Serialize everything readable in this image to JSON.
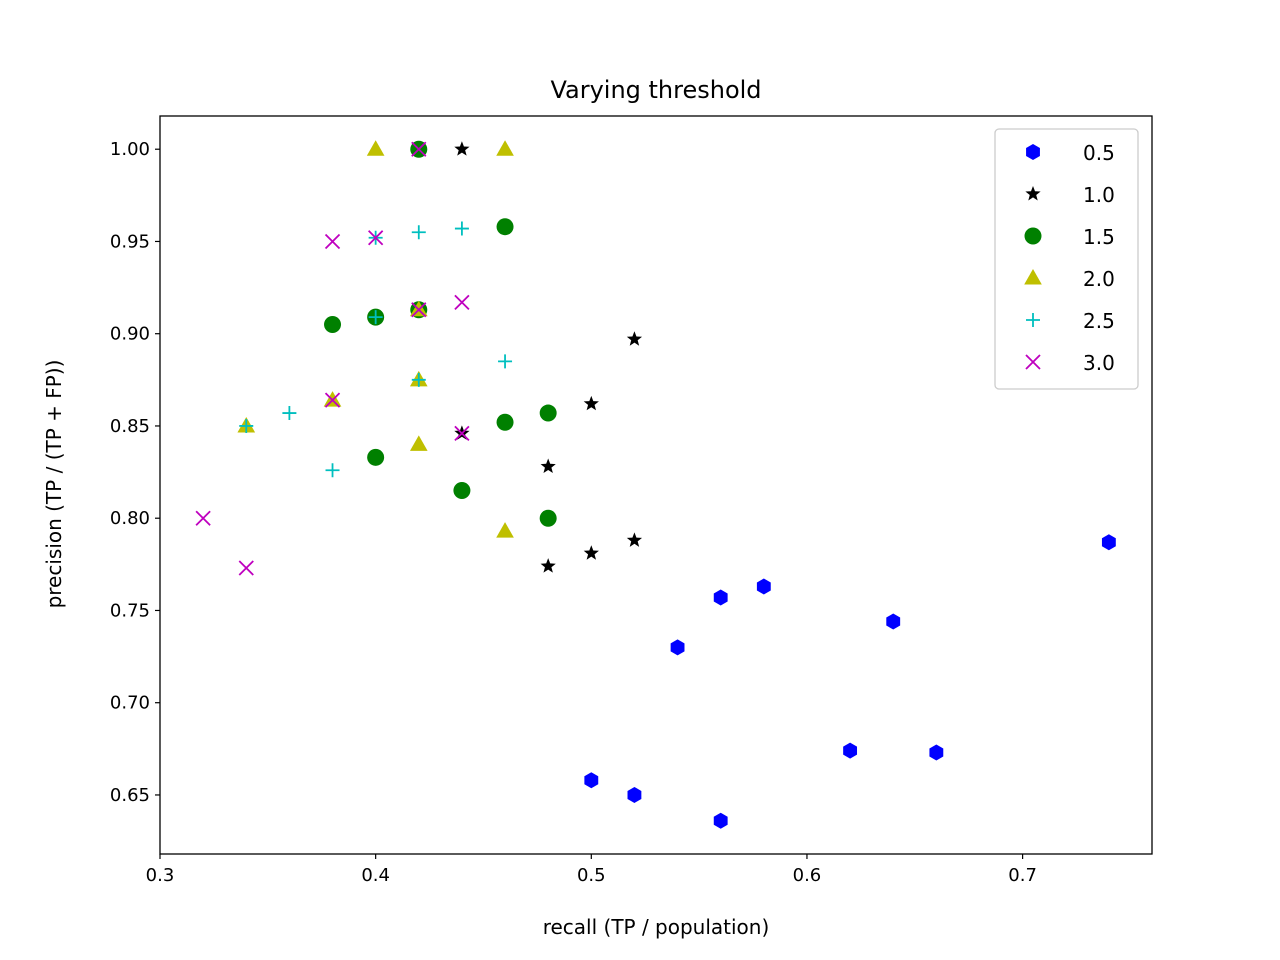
{
  "chart_data": {
    "type": "scatter",
    "title": "Varying threshold",
    "xlabel": "recall (TP / population)",
    "ylabel": "precision (TP / (TP + FP))",
    "xlim": [
      0.3,
      0.76
    ],
    "ylim": [
      0.618,
      1.018
    ],
    "xticks": [
      0.3,
      0.4,
      0.5,
      0.6,
      0.7
    ],
    "yticks": [
      0.65,
      0.7,
      0.75,
      0.8,
      0.85,
      0.9,
      0.95,
      1.0
    ],
    "xtick_labels": [
      "0.3",
      "0.4",
      "0.5",
      "0.6",
      "0.7"
    ],
    "ytick_labels": [
      "0.65",
      "0.70",
      "0.75",
      "0.80",
      "0.85",
      "0.90",
      "0.95",
      "1.00"
    ],
    "grid": false,
    "legend_position": "top-right",
    "series": [
      {
        "name": "0.5",
        "marker": "hexagon",
        "color": "#0000ff",
        "points": [
          [
            0.5,
            0.658
          ],
          [
            0.52,
            0.65
          ],
          [
            0.54,
            0.73
          ],
          [
            0.56,
            0.757
          ],
          [
            0.56,
            0.636
          ],
          [
            0.58,
            0.763
          ],
          [
            0.62,
            0.674
          ],
          [
            0.64,
            0.744
          ],
          [
            0.66,
            0.673
          ],
          [
            0.74,
            0.787
          ]
        ]
      },
      {
        "name": "1.0",
        "marker": "star",
        "color": "#000000",
        "points": [
          [
            0.42,
            1.0
          ],
          [
            0.44,
            1.0
          ],
          [
            0.44,
            0.846
          ],
          [
            0.48,
            0.828
          ],
          [
            0.48,
            0.774
          ],
          [
            0.5,
            0.862
          ],
          [
            0.5,
            0.781
          ],
          [
            0.52,
            0.897
          ],
          [
            0.52,
            0.788
          ]
        ]
      },
      {
        "name": "1.5",
        "marker": "circle",
        "color": "#008000",
        "points": [
          [
            0.38,
            0.905
          ],
          [
            0.4,
            0.909
          ],
          [
            0.4,
            0.833
          ],
          [
            0.42,
            1.0
          ],
          [
            0.42,
            0.913
          ],
          [
            0.44,
            0.815
          ],
          [
            0.46,
            0.958
          ],
          [
            0.46,
            0.852
          ],
          [
            0.48,
            0.857
          ],
          [
            0.48,
            0.8
          ]
        ]
      },
      {
        "name": "2.0",
        "marker": "triangle",
        "color": "#bfbf00",
        "points": [
          [
            0.34,
            0.85
          ],
          [
            0.38,
            0.864
          ],
          [
            0.4,
            1.0
          ],
          [
            0.42,
            0.913
          ],
          [
            0.42,
            0.875
          ],
          [
            0.42,
            0.84
          ],
          [
            0.46,
            1.0
          ],
          [
            0.46,
            0.793
          ]
        ]
      },
      {
        "name": "2.5",
        "marker": "plus",
        "color": "#00bfbf",
        "points": [
          [
            0.34,
            0.85
          ],
          [
            0.36,
            0.857
          ],
          [
            0.38,
            0.826
          ],
          [
            0.4,
            0.952
          ],
          [
            0.4,
            0.909
          ],
          [
            0.42,
            0.955
          ],
          [
            0.42,
            0.875
          ],
          [
            0.44,
            0.957
          ],
          [
            0.46,
            0.885
          ]
        ]
      },
      {
        "name": "3.0",
        "marker": "x",
        "color": "#bf00bf",
        "points": [
          [
            0.32,
            0.8
          ],
          [
            0.34,
            0.773
          ],
          [
            0.38,
            0.95
          ],
          [
            0.38,
            0.864
          ],
          [
            0.4,
            0.952
          ],
          [
            0.42,
            1.0
          ],
          [
            0.42,
            0.913
          ],
          [
            0.44,
            0.917
          ],
          [
            0.44,
            0.846
          ]
        ]
      }
    ]
  }
}
